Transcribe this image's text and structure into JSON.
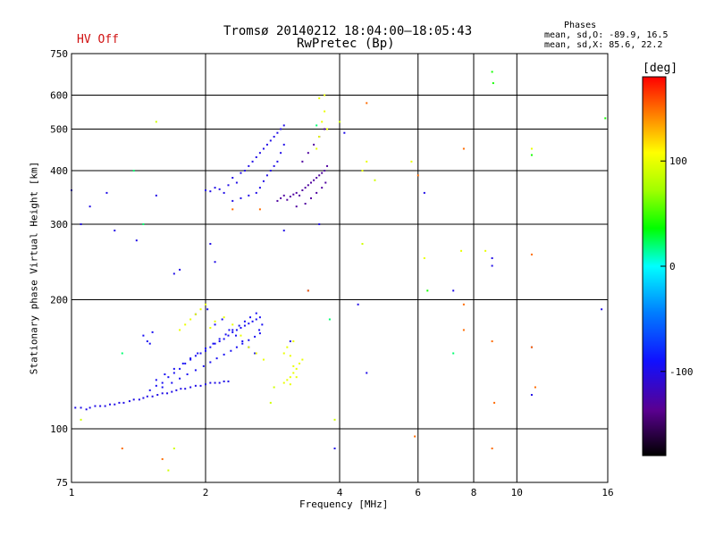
{
  "header": {
    "title_line1": "Tromsø 20140212 18:04:00–18:05:43",
    "title_line2": "RwPretec (Bp)",
    "hv_status": "HV Off",
    "phases_title": "Phases",
    "phases_o": "mean, sd,O: -89.9, 16.5",
    "phases_x": "mean, sd,X:  85.6, 22.2"
  },
  "colors": {
    "hv_status": "#d01010",
    "grid": "#000000"
  },
  "chart_data": {
    "type": "scatter",
    "title": "Tromsø 20140212 18:04:00–18:05:43",
    "subtitle": "RwPretec (Bp)",
    "xlabel": "Frequency [MHz]",
    "ylabel": "Stationary phase Virtual Height [km]",
    "xscale": "log",
    "yscale": "log",
    "xlim": [
      1,
      16
    ],
    "ylim": [
      75,
      750
    ],
    "xticks": [
      1,
      2,
      4,
      6,
      8,
      10,
      16
    ],
    "yticks": [
      75,
      100,
      200,
      300,
      400,
      500,
      600,
      750
    ],
    "xgrid": [
      2,
      4,
      6,
      8,
      10
    ],
    "ygrid": [
      100,
      200,
      300,
      400,
      500,
      600
    ],
    "colorbar": {
      "label": "[deg]",
      "range": [
        -180,
        180
      ],
      "ticks": [
        100,
        0,
        -100
      ]
    },
    "point_groups": [
      {
        "name": "low trace blue",
        "phase": -100,
        "x": [
          1.02,
          1.05,
          1.08,
          1.1,
          1.13,
          1.16,
          1.19,
          1.22,
          1.25,
          1.28,
          1.31,
          1.35,
          1.38,
          1.42,
          1.45,
          1.48,
          1.52,
          1.56,
          1.6,
          1.64,
          1.68,
          1.72,
          1.76,
          1.8,
          1.85,
          1.9,
          1.95,
          2.0,
          2.05,
          2.1,
          2.15,
          2.2,
          2.25
        ],
        "y": [
          112,
          112,
          111,
          112,
          113,
          113,
          113,
          114,
          114,
          115,
          115,
          116,
          117,
          117,
          118,
          119,
          119,
          120,
          121,
          121,
          122,
          123,
          124,
          124,
          125,
          126,
          126,
          127,
          128,
          128,
          128,
          129,
          129
        ]
      },
      {
        "name": "low cloud blue",
        "phase": -95,
        "x": [
          1.5,
          1.55,
          1.6,
          1.65,
          1.7,
          1.75,
          1.8,
          1.85,
          1.9,
          1.95,
          2.0,
          2.05,
          2.1,
          2.15,
          2.2,
          2.25,
          2.3,
          2.35,
          2.4,
          2.45,
          2.5,
          2.55,
          2.6,
          2.65,
          1.55,
          1.62,
          1.7,
          1.78,
          1.85,
          1.92,
          2.0,
          2.08,
          2.15,
          2.22,
          2.3,
          2.38,
          2.45,
          2.52,
          2.6,
          1.6,
          1.68,
          1.75,
          1.82,
          1.9,
          1.98,
          2.05,
          2.12,
          2.2,
          2.28,
          2.35,
          2.42,
          2.5,
          2.58,
          2.65,
          1.45,
          1.48,
          1.5,
          1.52,
          1.9,
          2.02,
          2.1,
          2.18,
          2.26,
          2.34,
          2.42,
          2.5,
          2.58,
          2.64,
          2.68
        ],
        "y": [
          123,
          126,
          128,
          132,
          135,
          138,
          142,
          145,
          148,
          150,
          152,
          155,
          158,
          160,
          162,
          165,
          168,
          170,
          172,
          174,
          176,
          178,
          180,
          182,
          130,
          134,
          138,
          142,
          146,
          150,
          154,
          158,
          162,
          166,
          170,
          174,
          178,
          182,
          186,
          125,
          128,
          131,
          134,
          137,
          140,
          143,
          146,
          149,
          152,
          155,
          158,
          161,
          164,
          167,
          165,
          160,
          158,
          168,
          185,
          190,
          175,
          180,
          170,
          165,
          160,
          155,
          150,
          170,
          175
        ]
      },
      {
        "name": "low yellow",
        "phase": 100,
        "x": [
          1.75,
          1.8,
          1.85,
          1.9,
          1.95,
          2.0,
          2.05,
          2.1,
          2.2,
          2.3,
          2.4,
          2.5,
          2.6,
          2.7,
          3.0,
          3.05,
          3.1,
          3.15,
          3.2,
          3.25,
          3.3,
          3.0,
          3.05,
          3.1,
          3.15,
          3.2,
          3.1,
          3.15
        ],
        "y": [
          170,
          175,
          180,
          185,
          190,
          195,
          172,
          178,
          182,
          175,
          165,
          155,
          150,
          145,
          128,
          130,
          132,
          135,
          138,
          142,
          145,
          150,
          155,
          148,
          140,
          132,
          127,
          160
        ]
      },
      {
        "name": "high trace blue",
        "phase": -100,
        "x": [
          2.0,
          2.05,
          2.1,
          2.15,
          2.2,
          2.25,
          2.3,
          2.35,
          2.4,
          2.45,
          2.5,
          2.55,
          2.6,
          2.65,
          2.7,
          2.75,
          2.8,
          2.85,
          2.9,
          2.95,
          3.0,
          2.3,
          2.4,
          2.5,
          2.6,
          2.65,
          2.7,
          2.75,
          2.8,
          2.85,
          2.9,
          2.95,
          3.0
        ],
        "y": [
          360,
          358,
          365,
          362,
          355,
          370,
          385,
          375,
          395,
          400,
          410,
          420,
          430,
          440,
          450,
          460,
          470,
          480,
          490,
          500,
          510,
          340,
          345,
          350,
          355,
          365,
          378,
          390,
          400,
          410,
          420,
          440,
          460
        ]
      },
      {
        "name": "high trace purple",
        "phase": -130,
        "x": [
          2.9,
          2.95,
          3.0,
          3.05,
          3.1,
          3.15,
          3.2,
          3.25,
          3.3,
          3.35,
          3.4,
          3.45,
          3.5,
          3.55,
          3.6,
          3.65,
          3.7,
          3.75,
          3.3,
          3.4,
          3.5,
          3.6,
          3.7,
          3.2,
          3.35,
          3.45,
          3.55,
          3.65,
          3.72
        ],
        "y": [
          340,
          345,
          350,
          342,
          348,
          352,
          355,
          350,
          360,
          365,
          370,
          375,
          380,
          385,
          390,
          395,
          400,
          410,
          420,
          440,
          460,
          480,
          500,
          330,
          335,
          345,
          355,
          365,
          375
        ]
      },
      {
        "name": "high yellow",
        "phase": 100,
        "x": [
          3.55,
          3.6,
          3.65,
          3.7,
          3.75,
          3.6,
          3.7,
          4.5,
          4.6,
          5.8,
          6.2,
          7.5,
          8.5,
          10.8
        ],
        "y": [
          450,
          480,
          520,
          550,
          500,
          590,
          600,
          400,
          420,
          420,
          250,
          260,
          260,
          450
        ]
      },
      {
        "name": "scattered blue",
        "phase": -100,
        "x": [
          1.0,
          1.05,
          1.1,
          1.2,
          1.25,
          1.4,
          1.55,
          1.7,
          1.75,
          2.05,
          2.1,
          3.0,
          3.1,
          3.4,
          3.6,
          3.9,
          4.1,
          4.4,
          4.6,
          6.2,
          7.2,
          8.8,
          8.8,
          10.8,
          10.8,
          15.5
        ],
        "y": [
          360,
          300,
          330,
          355,
          290,
          275,
          350,
          230,
          235,
          270,
          245,
          290,
          160,
          210,
          300,
          90,
          490,
          195,
          135,
          355,
          210,
          250,
          240,
          155,
          120,
          190
        ]
      },
      {
        "name": "scattered red",
        "phase": 150,
        "x": [
          2.3,
          2.65,
          7.6,
          8.8,
          8.9,
          10.8,
          11.0,
          3.4
        ],
        "y": [
          325,
          325,
          450,
          160,
          115,
          155,
          125,
          210
        ]
      },
      {
        "name": "scattered green",
        "phase": 20,
        "x": [
          1.3,
          1.38,
          1.45,
          3.55,
          3.8,
          7.2
        ],
        "y": [
          150,
          400,
          300,
          510,
          180,
          150
        ]
      },
      {
        "name": "scattered cyan",
        "phase": 40,
        "x": [
          8.8,
          8.85,
          10.8,
          15.8,
          6.3
        ],
        "y": [
          680,
          640,
          435,
          530,
          210
        ]
      },
      {
        "name": "scattered orange",
        "phase": 150,
        "x": [
          1.3,
          1.6,
          5.9,
          6.0,
          7.6,
          7.6,
          8.8,
          10.8,
          4.6
        ],
        "y": [
          90,
          85,
          96,
          390,
          195,
          170,
          90,
          255,
          575
        ]
      },
      {
        "name": "scattered yellow",
        "phase": 90,
        "x": [
          1.05,
          1.55,
          1.65,
          1.7,
          2.8,
          2.85,
          4.5,
          4.8,
          3.9,
          4.0
        ],
        "y": [
          105,
          520,
          80,
          90,
          115,
          125,
          270,
          380,
          105,
          520
        ]
      }
    ]
  }
}
